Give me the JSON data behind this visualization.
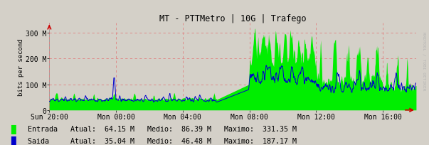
{
  "title": "MT - PTTMetro | 10G | Trafego",
  "ylabel": "bits per second",
  "bg_color": "#d4d0c8",
  "plot_bg_color": "#d4d0c8",
  "grid_color": "#e08080",
  "entrada_color": "#00ee00",
  "saida_color": "#0000cc",
  "x_ticks_labels": [
    "Sun 20:00",
    "Mon 00:00",
    "Mon 04:00",
    "Mon 08:00",
    "Mon 12:00",
    "Mon 16:00"
  ],
  "y_ticks": [
    0,
    100,
    200,
    300
  ],
  "y_ticks_labels": [
    "0",
    "100 M",
    "200 M",
    "300 M"
  ],
  "ylim": [
    0,
    340
  ],
  "legend_entrada": "Entrada",
  "legend_saida": "Saida",
  "atual_entrada": "64.15 M",
  "medio_entrada": "86.39 M",
  "maximo_entrada": "331.35 M",
  "atual_saida": "35.04 M",
  "medio_saida": "46.48 M",
  "maximo_saida": "187.17 M",
  "n_points": 1008,
  "rrdtool_text": "RRDTOOL / TOBI OETIKER",
  "arrow_color": "#cc0000"
}
